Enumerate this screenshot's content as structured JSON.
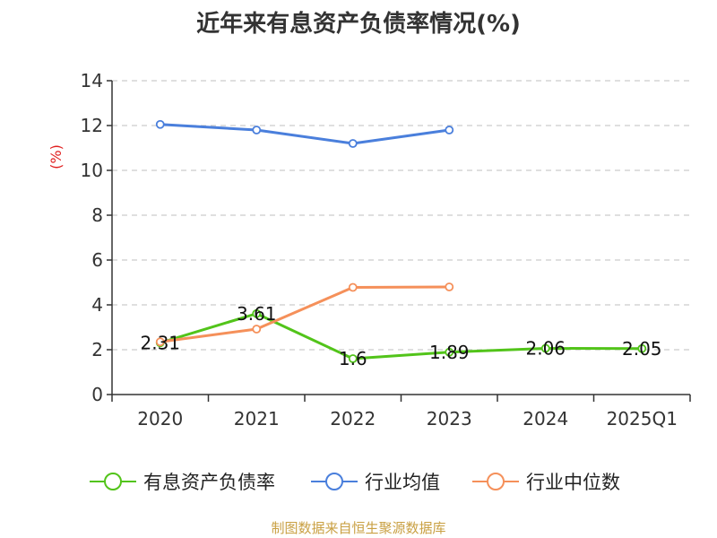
{
  "colors": {
    "series_1": "#52c41a",
    "series_2": "#4a7fdc",
    "series_3": "#f5905a",
    "unit_label": "#e02020",
    "source_note": "#c9a043",
    "axis": "#333333",
    "grid": "#cccccc"
  },
  "source_note": "制图数据来自恒生聚源数据库",
  "chart_data": {
    "type": "line",
    "title": "近年来有息资产负债率情况(%)",
    "ylabel": "(%)",
    "xlabel": "",
    "categories": [
      "2020",
      "2021",
      "2022",
      "2023",
      "2024",
      "2025Q1"
    ],
    "ylim": [
      0,
      14
    ],
    "yticks": [
      0,
      2,
      4,
      6,
      8,
      10,
      12,
      14
    ],
    "grid": true,
    "legend_position": "bottom",
    "series": [
      {
        "name": "有息资产负债率",
        "values": [
          2.31,
          3.61,
          1.6,
          1.89,
          2.06,
          2.05
        ],
        "labels": [
          "2.31",
          "3.61",
          "1.6",
          "1.89",
          "2.06",
          "2.05"
        ],
        "show_labels": true
      },
      {
        "name": "行业均值",
        "values": [
          12.05,
          11.8,
          11.2,
          11.8,
          null,
          null
        ],
        "show_labels": false
      },
      {
        "name": "行业中位数",
        "values": [
          2.35,
          2.92,
          4.78,
          4.8,
          null,
          null
        ],
        "show_labels": false
      }
    ]
  }
}
